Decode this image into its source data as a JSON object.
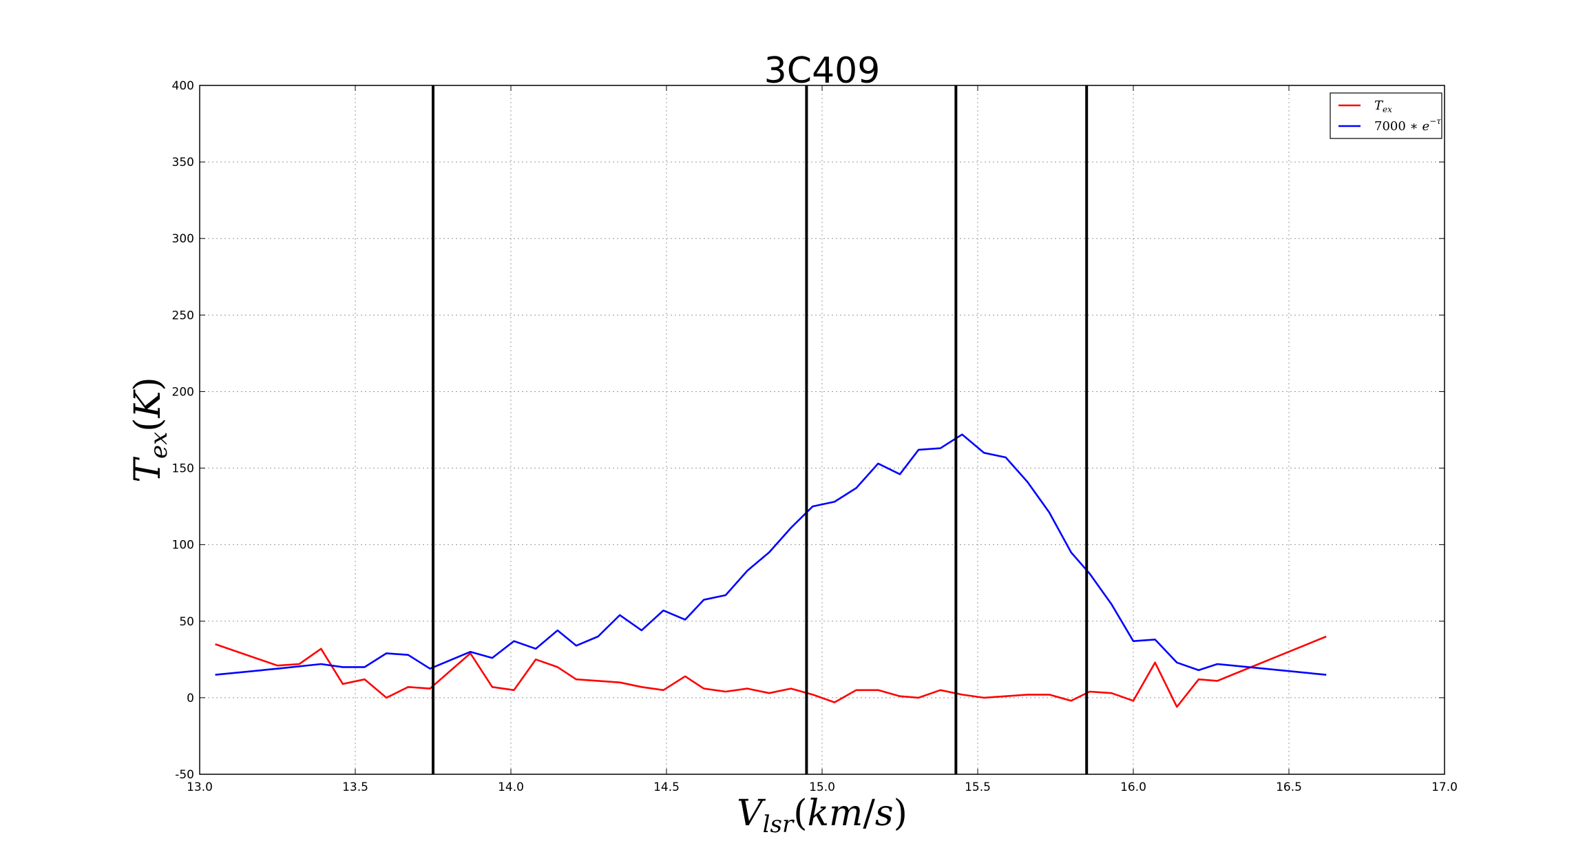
{
  "chart_data": {
    "type": "line",
    "title": "3C409",
    "xlabel": "V_lsr (km/s)",
    "ylabel": "T_ex (K)",
    "xlim": [
      13.0,
      17.0
    ],
    "ylim": [
      -50,
      400
    ],
    "xticks": [
      "13.0",
      "13.5",
      "14.0",
      "14.5",
      "15.0",
      "15.5",
      "16.0",
      "16.5",
      "17.0"
    ],
    "yticks": [
      "-50",
      "0",
      "50",
      "100",
      "150",
      "200",
      "250",
      "300",
      "350",
      "400"
    ],
    "grid": true,
    "legend_position": "top-right",
    "vertical_lines": [
      13.75,
      14.95,
      15.43,
      15.85
    ],
    "series": [
      {
        "name": "T_ex",
        "color": "#ff0000",
        "x": [
          13.05,
          13.25,
          13.32,
          13.39,
          13.46,
          13.53,
          13.6,
          13.67,
          13.74,
          13.87,
          13.94,
          14.01,
          14.08,
          14.15,
          14.21,
          14.28,
          14.35,
          14.42,
          14.49,
          14.56,
          14.62,
          14.69,
          14.76,
          14.83,
          14.9,
          14.97,
          15.04,
          15.11,
          15.18,
          15.25,
          15.31,
          15.38,
          15.45,
          15.52,
          15.59,
          15.66,
          15.73,
          15.8,
          15.86,
          15.93,
          16.0,
          16.07,
          16.14,
          16.21,
          16.27,
          16.62
        ],
        "values": [
          35,
          21,
          22,
          32,
          9,
          12,
          0,
          7,
          6,
          29,
          7,
          5,
          25,
          20,
          12,
          11,
          10,
          7,
          5,
          14,
          6,
          4,
          6,
          3,
          6,
          2,
          -3,
          5,
          5,
          1,
          0,
          5,
          2,
          0,
          1,
          2,
          2,
          -2,
          4,
          3,
          -2,
          23,
          -6,
          12,
          11,
          40
        ]
      },
      {
        "name": "7000 * e^{-τ}",
        "color": "#0000ff",
        "x": [
          13.05,
          13.25,
          13.39,
          13.46,
          13.53,
          13.6,
          13.67,
          13.74,
          13.87,
          13.94,
          14.01,
          14.08,
          14.15,
          14.21,
          14.28,
          14.35,
          14.42,
          14.49,
          14.56,
          14.62,
          14.69,
          14.76,
          14.83,
          14.9,
          14.97,
          15.04,
          15.11,
          15.18,
          15.25,
          15.31,
          15.38,
          15.45,
          15.52,
          15.59,
          15.66,
          15.73,
          15.8,
          15.86,
          15.93,
          16.0,
          16.07,
          16.14,
          16.21,
          16.27,
          16.62
        ],
        "values": [
          15,
          19,
          22,
          20,
          20,
          29,
          28,
          19,
          30,
          26,
          37,
          32,
          44,
          34,
          40,
          54,
          44,
          57,
          51,
          64,
          67,
          83,
          95,
          111,
          125,
          128,
          137,
          153,
          146,
          162,
          163,
          172,
          160,
          157,
          141,
          121,
          95,
          81,
          61,
          37,
          38,
          23,
          18,
          22,
          15
        ]
      }
    ]
  }
}
